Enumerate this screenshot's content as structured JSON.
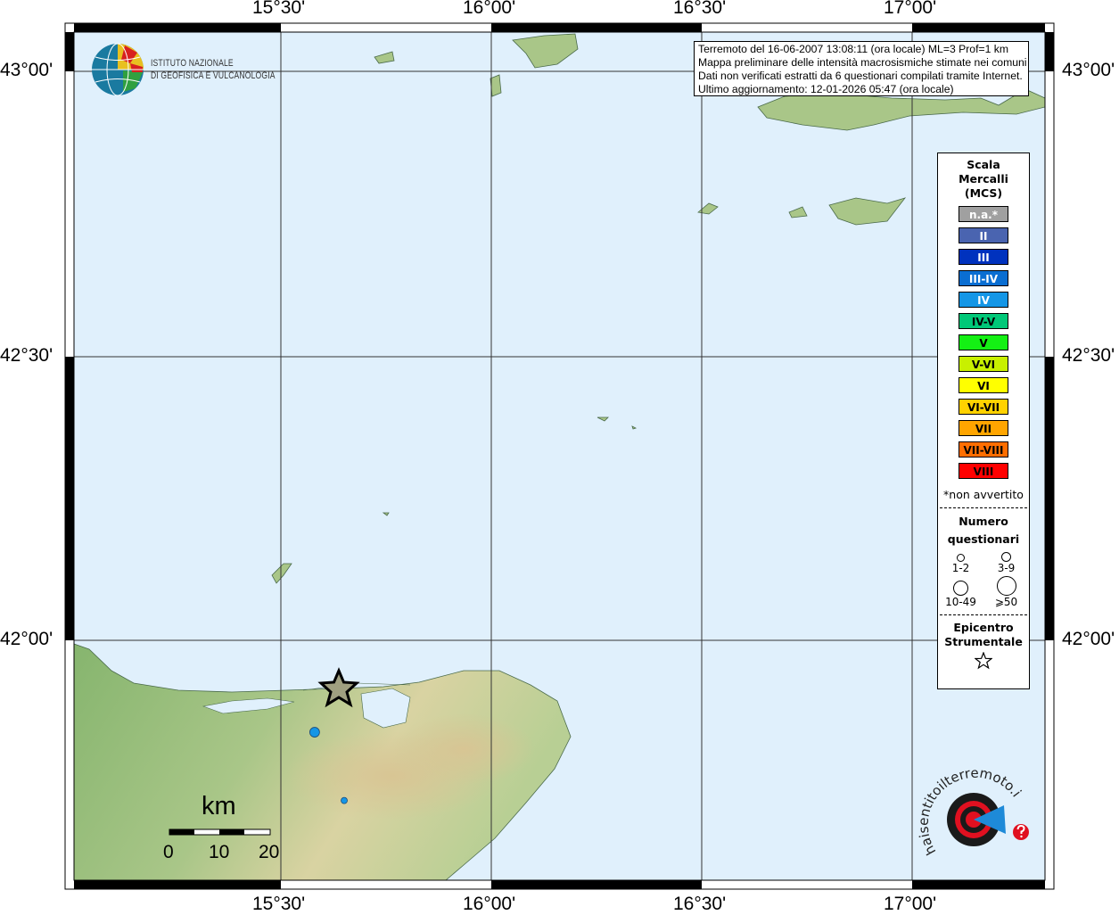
{
  "map": {
    "lon_range_deg": [
      15.0,
      17.3
    ],
    "lat_range_deg": [
      41.58,
      43.07
    ],
    "lon_ticks": [
      "15°30'",
      "16°00'",
      "16°30'",
      "17°00'"
    ],
    "lat_ticks": [
      "43°00'",
      "42°30'",
      "42°00'"
    ],
    "colors": {
      "sea": "#e0f0fc",
      "land_low": "#8cba72",
      "land_high": "#e8dcb0"
    }
  },
  "info_box": {
    "lines": [
      "Terremoto del 16-06-2007 13:08:11 (ora locale) ML=3 Prof=1 km",
      "Mappa preliminare delle intensità macrosismiche stimate nei comuni",
      "Dati non verificati estratti da 6 questionari compilati tramite Internet.",
      "Ultimo aggiornamento: 12-01-2026 05:47 (ora locale)"
    ]
  },
  "logo_ingv": {
    "line1": "ISTITUTO NAZIONALE",
    "line2": "DI GEOFISICA E VULCANOLOGIA"
  },
  "logo_hst": "www.haisentitoilterremoto.it",
  "legend": {
    "title": [
      "Scala",
      "Mercalli",
      "(MCS)"
    ],
    "scale": [
      {
        "label": "n.a.*",
        "color": "#a0a0a0",
        "text": "#ffffff"
      },
      {
        "label": "II",
        "color": "#4a64b0",
        "text": "#ffffff"
      },
      {
        "label": "III",
        "color": "#0032be",
        "text": "#ffffff"
      },
      {
        "label": "III-IV",
        "color": "#0a6ed2",
        "text": "#ffffff"
      },
      {
        "label": "IV",
        "color": "#1496e6",
        "text": "#ffffff"
      },
      {
        "label": "IV-V",
        "color": "#00c878",
        "text": "#000000"
      },
      {
        "label": "V",
        "color": "#14f014",
        "text": "#000000"
      },
      {
        "label": "V-VI",
        "color": "#c8f000",
        "text": "#000000"
      },
      {
        "label": "VI",
        "color": "#ffff00",
        "text": "#000000"
      },
      {
        "label": "VI-VII",
        "color": "#ffd200",
        "text": "#000000"
      },
      {
        "label": "VII",
        "color": "#ffa500",
        "text": "#000000"
      },
      {
        "label": "VII-VIII",
        "color": "#ff6e00",
        "text": "#000000"
      },
      {
        "label": "VIII",
        "color": "#ff0000",
        "text": "#000000"
      }
    ],
    "note": "*non avvertito",
    "count_title": [
      "Numero",
      "questionari"
    ],
    "counts": [
      "1-2",
      "3-9",
      "10-49",
      "⩾50"
    ],
    "epicenter_title": [
      "Epicentro",
      "Strumentale"
    ]
  },
  "scale_bar": {
    "unit": "km",
    "labels": [
      "0",
      "10",
      "20"
    ]
  },
  "points": [
    {
      "lon": 15.57,
      "lat": 41.84,
      "intensity": "IV",
      "questionnaires": "3-9"
    },
    {
      "lon": 15.64,
      "lat": 41.72,
      "intensity": "IV",
      "questionnaires": "1-2"
    }
  ],
  "epicenter": {
    "lon": 15.64,
    "lat": 41.93
  }
}
